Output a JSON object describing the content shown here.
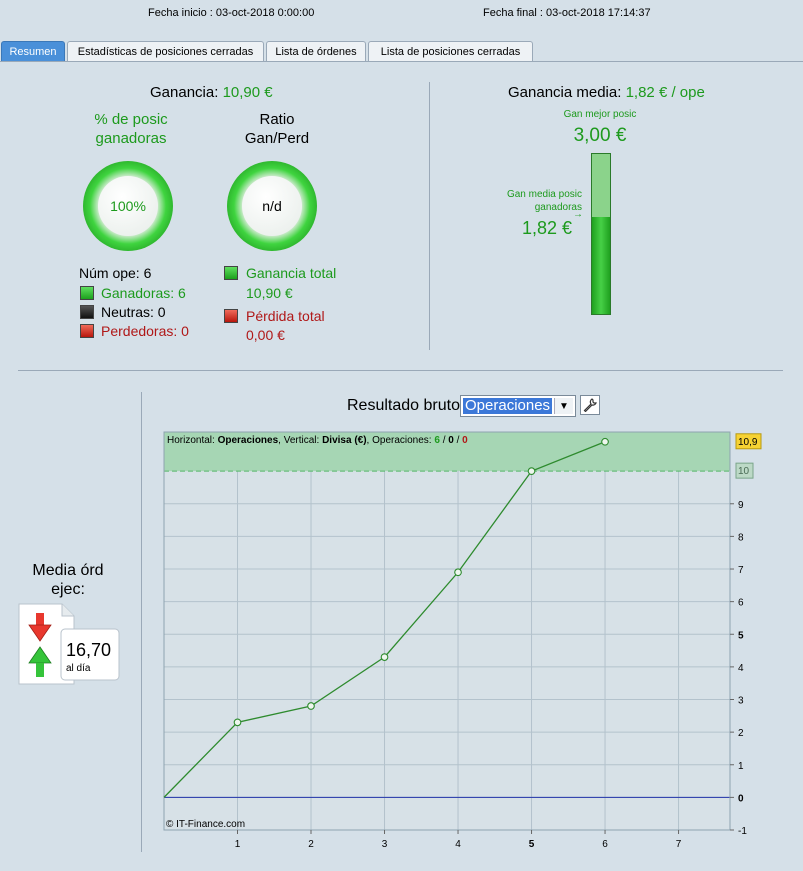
{
  "header": {
    "fecha_inicio": "Fecha inicio :  03-oct-2018 0:00:00",
    "fecha_final": "Fecha final :  03-oct-2018 17:14:37"
  },
  "tabs": [
    {
      "label": "Resumen",
      "active": true
    },
    {
      "label": "Estadísticas de posiciones cerradas",
      "active": false
    },
    {
      "label": "Lista de órdenes",
      "active": false
    },
    {
      "label": "Lista de posiciones cerradas",
      "active": false
    }
  ],
  "summary": {
    "ganancia_label": "Ganancia:",
    "ganancia_value": "10,90 €",
    "pct_title_1": "% de posic",
    "pct_title_2": "ganadoras",
    "pct_value": "100%",
    "ratio_title_1": "Ratio",
    "ratio_title_2": "Gan/Perd",
    "ratio_value": "n/d",
    "num_ope": "Núm ope: 6",
    "ganadoras": "Ganadoras: 6",
    "neutras": "Neutras: 0",
    "perdedoras": "Perdedoras: 0",
    "ganancia_total_label": "Ganancia total",
    "ganancia_total_value": "10,90 €",
    "perdida_total_label": "Pérdida total",
    "perdida_total_value": "0,00 €"
  },
  "media": {
    "title_label": "Ganancia media:",
    "title_value": "1,82 € / ope",
    "mejor_label": "Gan mejor posic",
    "mejor_value": "3,00 €",
    "media_label_1": "Gan media posic",
    "media_label_2": "ganadoras",
    "media_value": "1,82 €",
    "bar_fraction": 0.607
  },
  "ordenes": {
    "label_1": "Media órd",
    "label_2": "ejec:",
    "value": "16,70",
    "unit": "al día"
  },
  "colors": {
    "green": "#1d9a1d",
    "red": "#b01818",
    "line": "#2e8b2e",
    "zero": "#2233aa"
  },
  "chart_data": {
    "type": "line",
    "title": "Resultado bruto",
    "select_value": "Operaciones",
    "header_text": {
      "h": "Horizontal: ",
      "h_val": "Operaciones",
      "v": ", Vertical: ",
      "v_val": "Divisa (€)",
      "o": ", Operaciones: ",
      "n1": "6",
      "sep1": " / ",
      "n2": "0",
      "sep2": " / ",
      "n3": "0"
    },
    "credit": "© IT-Finance.com",
    "x": [
      0,
      1,
      2,
      3,
      4,
      5,
      6
    ],
    "y": [
      0,
      2.3,
      2.8,
      4.3,
      6.9,
      10.0,
      10.9
    ],
    "xlim": [
      0,
      7.7
    ],
    "ylim": [
      -1,
      11.2
    ],
    "x_ticks": [
      "1",
      "2",
      "3",
      "4",
      "5",
      "6",
      "7"
    ],
    "y_ticks": [
      "-1",
      "0",
      "1",
      "2",
      "3",
      "4",
      "5",
      "6",
      "7",
      "8",
      "9"
    ],
    "highlight_range": [
      10,
      11.2
    ],
    "marker_max": "10,9",
    "marker_threshold": "10",
    "grid": true
  }
}
